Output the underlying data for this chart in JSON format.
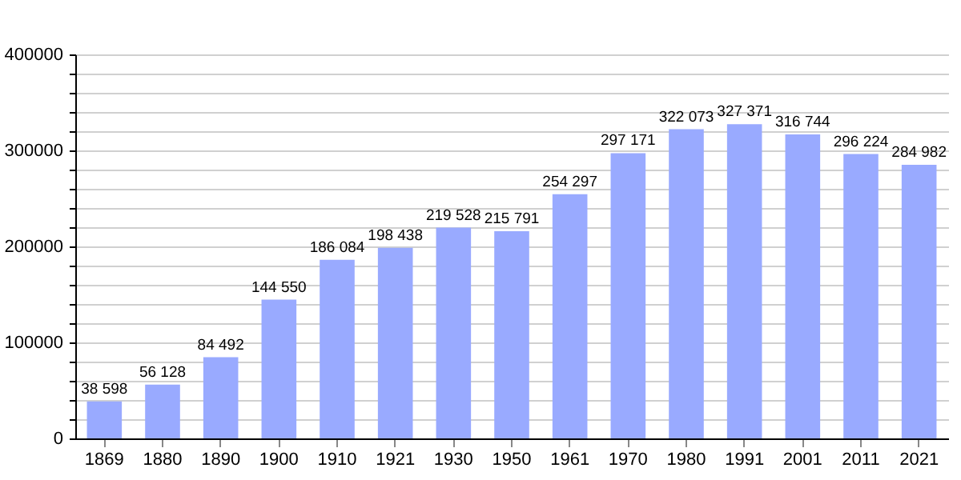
{
  "chart_data": {
    "type": "bar",
    "categories": [
      "1869",
      "1880",
      "1890",
      "1900",
      "1910",
      "1921",
      "1930",
      "1950",
      "1961",
      "1970",
      "1980",
      "1991",
      "2001",
      "2011",
      "2021"
    ],
    "values": [
      38598,
      56128,
      84492,
      144550,
      186084,
      198438,
      219528,
      215791,
      254297,
      297171,
      322073,
      327371,
      316744,
      296224,
      284982
    ],
    "value_labels": [
      "38 598",
      "56 128",
      "84 492",
      "144 550",
      "186 084",
      "198 438",
      "219 528",
      "215 791",
      "254 297",
      "297 171",
      "322 073",
      "327 371",
      "316 744",
      "296 224",
      "284 982"
    ],
    "color": "#99aaff",
    "ylim": [
      0,
      400000
    ],
    "yticks": [
      0,
      {
        "value": 20000,
        "label": null
      },
      {
        "value": 40000,
        "label": null
      },
      {
        "value": 60000,
        "label": null
      },
      {
        "value": 80000,
        "label": null
      },
      100000,
      {
        "value": 120000,
        "label": null
      },
      {
        "value": 140000,
        "label": null
      },
      {
        "value": 160000,
        "label": null
      },
      {
        "value": 180000,
        "label": null
      },
      200000,
      {
        "value": 220000,
        "label": null
      },
      {
        "value": 240000,
        "label": null
      },
      {
        "value": 260000,
        "label": null
      },
      {
        "value": 280000,
        "label": null
      },
      300000,
      {
        "value": 320000,
        "label": null
      },
      {
        "value": 340000,
        "label": null
      },
      {
        "value": 360000,
        "label": null
      },
      {
        "value": 380000,
        "label": null
      },
      400000
    ],
    "grid": true
  }
}
